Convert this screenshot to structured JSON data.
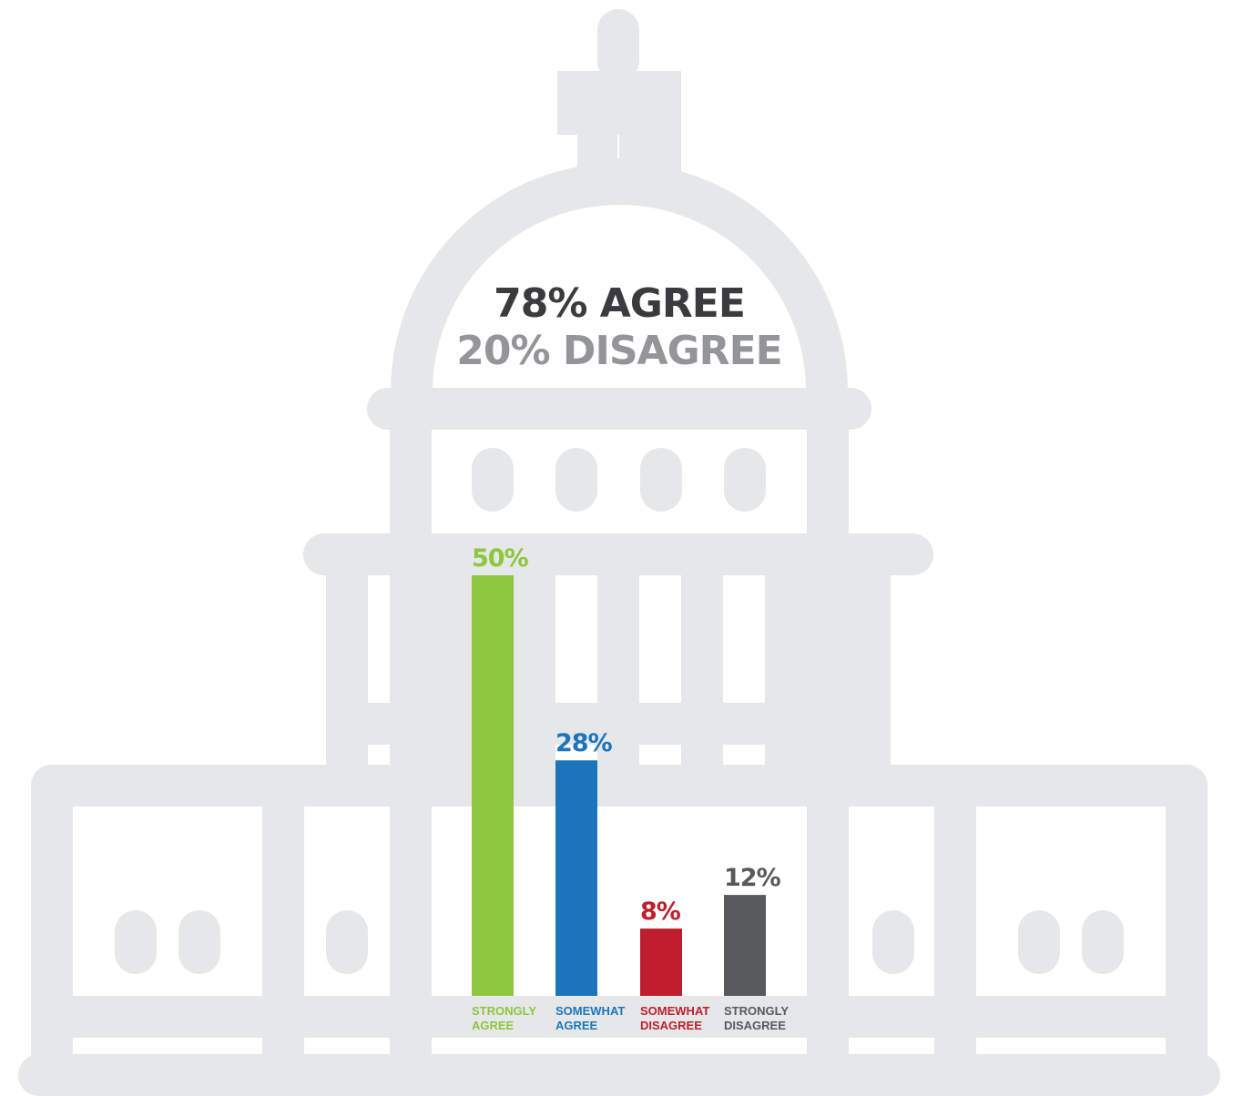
{
  "headline": {
    "agree_text": "78% AGREE",
    "disagree_text": "20% DISAGREE",
    "agree_color": "#3a3b3d",
    "disagree_color": "#939598"
  },
  "building_color": "#e6e7e8",
  "chart_data": {
    "type": "bar",
    "categories": [
      "STRONGLY\nAGREE",
      "SOMEWHAT\nAGREE",
      "SOMEWHAT\nDISAGREE",
      "STRONGLY\nDISAGREE"
    ],
    "values": [
      50,
      28,
      8,
      12
    ],
    "value_labels": [
      "50%",
      "28%",
      "8%",
      "12%"
    ],
    "colors": [
      "#8dc63f",
      "#1c75bc",
      "#be1e2d",
      "#58595b"
    ],
    "unit": "%",
    "ylim": [
      0,
      50
    ],
    "grid": false,
    "legend": "none"
  }
}
